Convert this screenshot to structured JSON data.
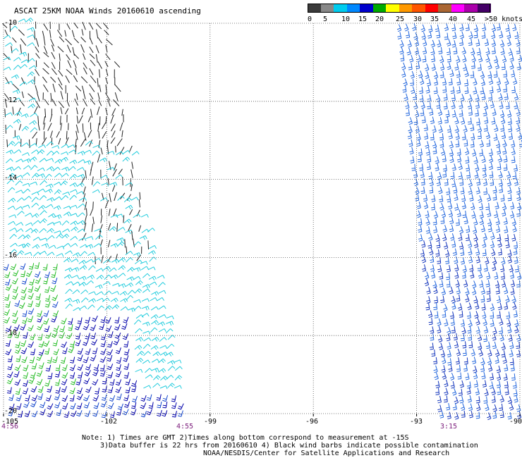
{
  "title": "ASCAT 25KM NOAA Winds 20160610 ascending",
  "colorbar": {
    "colors": [
      "#3a3a3a",
      "#888888",
      "#00ccee",
      "#0088ff",
      "#0000cc",
      "#00aa00",
      "#ffff00",
      "#ff9900",
      "#ff5500",
      "#ff0000",
      "#aa6633",
      "#ff00ff",
      "#aa00aa",
      "#440066"
    ],
    "labels": [
      "0",
      "5",
      "10",
      "15",
      "20",
      "25",
      "30",
      "35",
      "40",
      "45",
      ">50 knots"
    ]
  },
  "lat_labels": [
    "-10",
    "-12",
    "-14",
    "-16",
    "-18",
    "-20"
  ],
  "lon_labels": [
    "-105",
    "-102",
    "-99",
    "-96",
    "-93",
    "-90"
  ],
  "times": [
    "4:56",
    "4:55",
    "3:15"
  ],
  "notes": [
    "Note: 1) Times are GMT 2)Times along bottom correspond to measurement at -15S",
    "3)Data buffer is 22 hrs from 20160610 4) Black wind barbs indicate possible contamination",
    "NOAA/NESDIS/Center for Satellite Applications and Research"
  ],
  "map": {
    "lat_range": [
      -20,
      -10
    ],
    "lon_range": [
      -105,
      -90
    ],
    "swaths": [
      {
        "name": "west",
        "time": "4:56",
        "colors": {
          "black": "#222222",
          "cyan": "#22ccdd",
          "green": "#22bb22",
          "blue": "#1144cc",
          "navy": "#0000aa"
        }
      },
      {
        "name": "east",
        "time": "3:15",
        "colors": {
          "blue": "#2266dd",
          "navy": "#1133bb"
        }
      }
    ]
  }
}
